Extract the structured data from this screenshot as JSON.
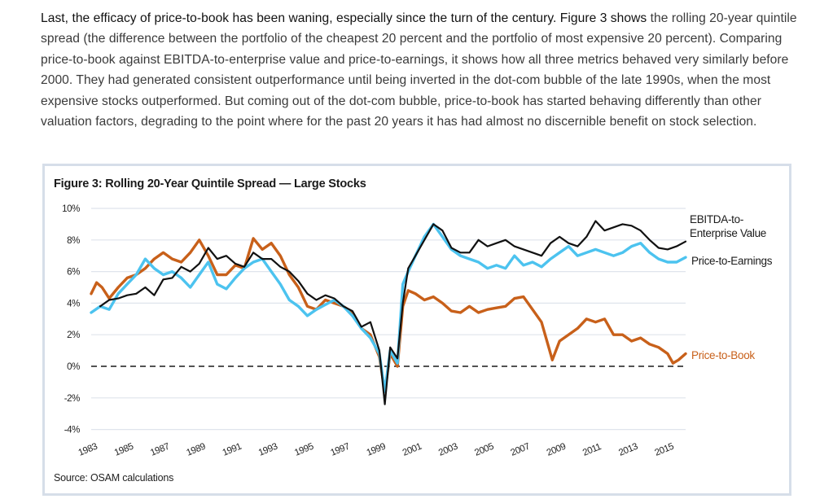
{
  "paragraph": {
    "lead": "Last, the efficacy of price-to-book has been waning, especially since the turn of the century. Figure 3 shows",
    "rest": " the rolling 20-year quintile spread (the difference between the portfolio of the cheapest 20 percent and the portfolio of most expensive 20 percent). Comparing price-to-book against EBITDA-to-enterprise value and price-to-earnings, it shows how all three metrics behaved very similarly before 2000. They had generated consistent outperformance until being inverted in the dot-com bubble of the late 1990s, when the most expensive stocks outperformed. But coming out of the dot-com bubble, price-to-book has started behaving differently than other valuation factors, degrading to the point where for the past 20 years it has had almost no discernible benefit on stock selection."
  },
  "figure": {
    "title": "Figure 3: Rolling 20-Year Quintile Spread — Large Stocks",
    "source": "Source: OSAM calculations"
  },
  "chart_data": {
    "type": "line",
    "title": "Figure 3: Rolling 20-Year Quintile Spread — Large Stocks",
    "xlabel": "",
    "ylabel": "",
    "xlim": [
      1983,
      2016
    ],
    "ylim": [
      -4,
      10
    ],
    "grid": true,
    "zero_line": "dashed",
    "legend_placement": "right, labels at line ends",
    "x_ticks": [
      "1983",
      "1985",
      "1987",
      "1989",
      "1991",
      "1993",
      "1995",
      "1997",
      "1999",
      "2001",
      "2003",
      "2005",
      "2007",
      "2009",
      "2011",
      "2013",
      "2015"
    ],
    "y_ticks": [
      "10%",
      "8%",
      "6%",
      "4%",
      "2%",
      "0%",
      "-2%",
      "-4%"
    ],
    "y_tick_values": [
      10,
      8,
      6,
      4,
      2,
      0,
      -2,
      -4
    ],
    "series": [
      {
        "name": "EBITDA-to-Enterprise Value",
        "label_lines": [
          "EBITDA-to-",
          "Enterprise Value"
        ],
        "color": "#111111",
        "x": [
          1983.5,
          1984,
          1984.5,
          1985,
          1985.5,
          1986,
          1986.5,
          1987,
          1987.5,
          1988,
          1988.5,
          1989,
          1989.5,
          1990,
          1990.5,
          1991,
          1991.5,
          1992,
          1992.5,
          1993,
          1993.5,
          1994,
          1994.5,
          1995,
          1995.5,
          1996,
          1996.5,
          1997,
          1997.5,
          1998,
          1998.5,
          1999,
          1999.3,
          1999.6,
          2000,
          2000.3,
          2000.6,
          2001,
          2001.5,
          2002,
          2002.5,
          2003,
          2003.5,
          2004,
          2004.5,
          2005,
          2005.5,
          2006,
          2006.5,
          2007,
          2007.5,
          2008,
          2008.5,
          2009,
          2009.5,
          2010,
          2010.5,
          2011,
          2011.5,
          2012,
          2012.5,
          2013,
          2013.5,
          2014,
          2014.5,
          2015,
          2015.5,
          2016
        ],
        "values": [
          3.8,
          4.2,
          4.3,
          4.5,
          4.6,
          5.0,
          4.5,
          5.5,
          5.6,
          6.3,
          6.0,
          6.5,
          7.5,
          6.8,
          7.0,
          6.5,
          6.3,
          7.2,
          6.8,
          6.8,
          6.3,
          6.0,
          5.4,
          4.6,
          4.2,
          4.5,
          4.3,
          3.8,
          3.5,
          2.5,
          2.8,
          1.0,
          -2.4,
          1.2,
          0.5,
          4.0,
          6.2,
          7.0,
          8.0,
          9.0,
          8.6,
          7.5,
          7.2,
          7.2,
          8.0,
          7.6,
          7.8,
          8.0,
          7.6,
          7.4,
          7.2,
          7.0,
          7.8,
          8.2,
          7.8,
          7.6,
          8.2,
          9.2,
          8.6,
          8.8,
          9.0,
          8.9,
          8.6,
          8.0,
          7.5,
          7.4,
          7.6,
          7.9
        ]
      },
      {
        "name": "Price-to-Earnings",
        "label_lines": [
          "Price-to-Earnings"
        ],
        "color": "#4cc3ef",
        "x": [
          1983,
          1983.5,
          1984,
          1984.5,
          1985,
          1985.5,
          1986,
          1986.5,
          1987,
          1987.5,
          1988,
          1988.5,
          1989,
          1989.5,
          1990,
          1990.5,
          1991,
          1991.5,
          1992,
          1992.5,
          1993,
          1993.5,
          1994,
          1994.5,
          1995,
          1995.5,
          1996,
          1996.5,
          1997,
          1997.5,
          1998,
          1998.5,
          1999,
          1999.3,
          1999.6,
          2000,
          2000.3,
          2000.6,
          2001,
          2001.5,
          2002,
          2002.5,
          2003,
          2003.5,
          2004,
          2004.5,
          2005,
          2005.5,
          2006,
          2006.5,
          2007,
          2007.5,
          2008,
          2008.5,
          2009,
          2009.5,
          2010,
          2010.5,
          2011,
          2011.5,
          2012,
          2012.5,
          2013,
          2013.5,
          2014,
          2014.5,
          2015,
          2015.5,
          2016
        ],
        "values": [
          3.4,
          3.8,
          3.6,
          4.6,
          5.2,
          5.8,
          6.8,
          6.2,
          5.8,
          6.0,
          5.6,
          5.0,
          5.8,
          6.6,
          5.2,
          4.9,
          5.6,
          6.2,
          6.6,
          6.8,
          6.0,
          5.2,
          4.2,
          3.8,
          3.2,
          3.6,
          3.9,
          4.2,
          3.8,
          3.2,
          2.4,
          1.8,
          0.8,
          -1.6,
          1.0,
          0.2,
          5.2,
          6.0,
          7.0,
          8.2,
          9.0,
          8.2,
          7.4,
          7.0,
          6.8,
          6.6,
          6.2,
          6.4,
          6.2,
          7.0,
          6.4,
          6.6,
          6.3,
          6.8,
          7.2,
          7.6,
          7.0,
          7.2,
          7.4,
          7.2,
          7.0,
          7.2,
          7.6,
          7.8,
          7.2,
          6.8,
          6.6,
          6.6,
          6.9
        ]
      },
      {
        "name": "Price-to-Book",
        "label_lines": [
          "Price-to-Book"
        ],
        "color": "#c8601a",
        "x": [
          1983,
          1983.3,
          1983.6,
          1984,
          1984.5,
          1985,
          1985.5,
          1986,
          1986.5,
          1987,
          1987.5,
          1988,
          1988.5,
          1989,
          1989.5,
          1990,
          1990.5,
          1991,
          1991.5,
          1992,
          1992.5,
          1993,
          1993.5,
          1994,
          1994.5,
          1995,
          1995.5,
          1996,
          1996.5,
          1997,
          1997.5,
          1998,
          1998.5,
          1999,
          1999.3,
          1999.6,
          2000,
          2000.3,
          2000.6,
          2001,
          2001.5,
          2002,
          2002.5,
          2003,
          2003.5,
          2004,
          2004.5,
          2005,
          2005.5,
          2006,
          2006.5,
          2007,
          2007.5,
          2008,
          2008.3,
          2008.6,
          2009,
          2009.5,
          2010,
          2010.5,
          2011,
          2011.5,
          2012,
          2012.5,
          2013,
          2013.5,
          2014,
          2014.5,
          2015,
          2015.3,
          2015.6,
          2016
        ],
        "values": [
          4.6,
          5.3,
          5.0,
          4.3,
          5.0,
          5.6,
          5.8,
          6.2,
          6.8,
          7.2,
          6.8,
          6.6,
          7.2,
          8.0,
          7.0,
          5.8,
          5.8,
          6.4,
          6.2,
          8.1,
          7.4,
          7.8,
          7.0,
          5.8,
          5.0,
          3.8,
          3.6,
          4.2,
          4.0,
          3.8,
          3.4,
          2.4,
          2.0,
          0.6,
          -1.6,
          0.8,
          0.0,
          3.8,
          4.8,
          4.6,
          4.2,
          4.4,
          4.0,
          3.5,
          3.4,
          3.8,
          3.4,
          3.6,
          3.7,
          3.8,
          4.3,
          4.4,
          3.6,
          2.8,
          1.6,
          0.4,
          1.6,
          2.0,
          2.4,
          3.0,
          2.8,
          3.0,
          2.0,
          2.0,
          1.6,
          1.8,
          1.4,
          1.2,
          0.8,
          0.2,
          0.4,
          0.8
        ]
      }
    ]
  }
}
